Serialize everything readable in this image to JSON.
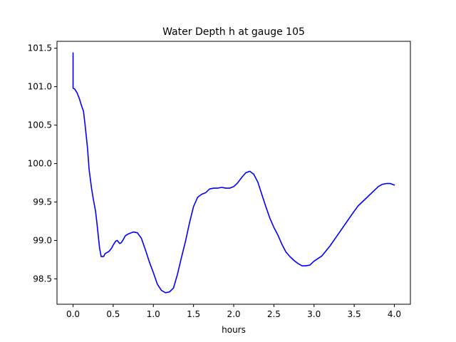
{
  "chart_data": {
    "type": "line",
    "title": "Water Depth h at gauge 105",
    "xlabel": "hours",
    "ylabel": "",
    "xlim": [
      -0.2,
      4.2
    ],
    "ylim": [
      98.17,
      101.59
    ],
    "x_ticks": [
      0.0,
      0.5,
      1.0,
      1.5,
      2.0,
      2.5,
      3.0,
      3.5,
      4.0
    ],
    "x_tick_labels": [
      "0.0",
      "0.5",
      "1.0",
      "1.5",
      "2.0",
      "2.5",
      "3.0",
      "3.5",
      "4.0"
    ],
    "y_ticks": [
      98.5,
      99.0,
      99.5,
      100.0,
      100.5,
      101.0,
      101.5
    ],
    "y_tick_labels": [
      "98.5",
      "99.0",
      "99.5",
      "100.0",
      "100.5",
      "101.0",
      "101.5"
    ],
    "grid": false,
    "series": [
      {
        "name": "",
        "color": "#0000ff",
        "x": [
          0.0,
          0.0,
          0.02,
          0.05,
          0.08,
          0.1,
          0.13,
          0.15,
          0.18,
          0.2,
          0.23,
          0.25,
          0.28,
          0.3,
          0.33,
          0.35,
          0.38,
          0.4,
          0.42,
          0.45,
          0.48,
          0.5,
          0.53,
          0.55,
          0.58,
          0.6,
          0.63,
          0.65,
          0.68,
          0.7,
          0.75,
          0.8,
          0.85,
          0.9,
          0.95,
          1.0,
          1.05,
          1.1,
          1.15,
          1.2,
          1.25,
          1.3,
          1.35,
          1.4,
          1.45,
          1.5,
          1.55,
          1.6,
          1.65,
          1.7,
          1.75,
          1.8,
          1.85,
          1.9,
          1.95,
          2.0,
          2.05,
          2.1,
          2.15,
          2.2,
          2.25,
          2.3,
          2.35,
          2.4,
          2.45,
          2.5,
          2.55,
          2.6,
          2.65,
          2.7,
          2.75,
          2.8,
          2.85,
          2.9,
          2.95,
          3.0,
          3.1,
          3.2,
          3.3,
          3.4,
          3.5,
          3.55,
          3.6,
          3.65,
          3.7,
          3.75,
          3.8,
          3.85,
          3.9,
          3.95,
          4.0
        ],
        "values": [
          101.44,
          100.98,
          100.97,
          100.92,
          100.84,
          100.77,
          100.68,
          100.5,
          100.2,
          99.92,
          99.68,
          99.55,
          99.38,
          99.2,
          98.9,
          98.79,
          98.79,
          98.83,
          98.84,
          98.86,
          98.9,
          98.94,
          98.99,
          99.0,
          98.96,
          98.97,
          99.02,
          99.06,
          99.08,
          99.09,
          99.11,
          99.1,
          99.03,
          98.88,
          98.72,
          98.58,
          98.43,
          98.35,
          98.32,
          98.33,
          98.38,
          98.56,
          98.78,
          98.99,
          99.23,
          99.44,
          99.56,
          99.6,
          99.62,
          99.67,
          99.68,
          99.68,
          99.69,
          99.68,
          99.68,
          99.7,
          99.75,
          99.82,
          99.88,
          99.9,
          99.86,
          99.76,
          99.6,
          99.44,
          99.29,
          99.17,
          99.07,
          98.95,
          98.85,
          98.79,
          98.74,
          98.7,
          98.67,
          98.67,
          98.68,
          98.73,
          98.8,
          98.93,
          99.08,
          99.23,
          99.38,
          99.45,
          99.5,
          99.55,
          99.6,
          99.65,
          99.7,
          99.73,
          99.74,
          99.74,
          99.72
        ]
      }
    ]
  }
}
